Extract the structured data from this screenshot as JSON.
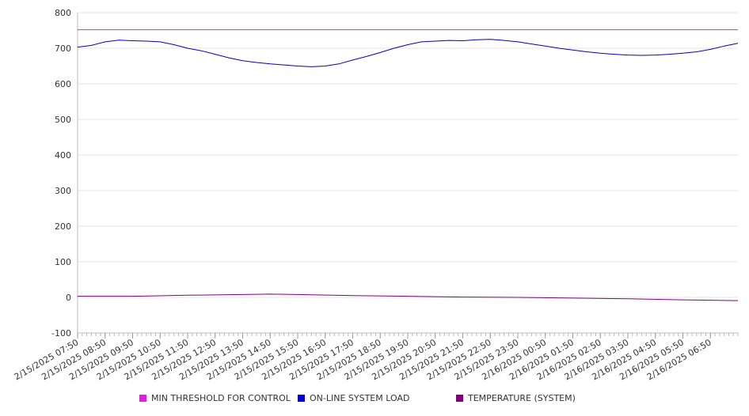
{
  "chart_data": {
    "type": "line",
    "title": "",
    "xlabel": "",
    "ylabel": "",
    "ylim": [
      -100,
      800
    ],
    "y_ticks": [
      -100,
      0,
      100,
      200,
      300,
      400,
      500,
      600,
      700,
      800
    ],
    "y_tick_labels": [
      "-100",
      "0",
      "100",
      "200",
      "300",
      "400",
      "500",
      "600",
      "700",
      "800"
    ],
    "x_range": [
      "2/15/2025 07:50",
      "2/16/2025 07:50"
    ],
    "x_tick_labels": [
      "2/15/2025 07:50",
      "2/15/2025 08:50",
      "2/15/2025 09:50",
      "2/15/2025 10:50",
      "2/15/2025 11:50",
      "2/15/2025 12:50",
      "2/15/2025 13:50",
      "2/15/2025 14:50",
      "2/15/2025 15:50",
      "2/15/2025 16:50",
      "2/15/2025 17:50",
      "2/15/2025 18:50",
      "2/15/2025 19:50",
      "2/15/2025 20:50",
      "2/15/2025 21:50",
      "2/15/2025 22:50",
      "2/15/2025 23:50",
      "2/16/2025 00:50",
      "2/16/2025 01:50",
      "2/16/2025 02:50",
      "2/16/2025 03:50",
      "2/16/2025 04:50",
      "2/16/2025 05:50",
      "2/16/2025 06:50"
    ],
    "grid": "horizontal",
    "legend_position": "bottom",
    "series": [
      {
        "name": "MIN THRESHOLD FOR CONTROL",
        "color": "#e020e0",
        "x": [
          "2/15/2025 07:50",
          "2/16/2025 07:50"
        ],
        "values": [
          752,
          752
        ]
      },
      {
        "name": "ON-LINE SYSTEM LOAD",
        "color": "#0000cc",
        "x": [
          "2/15/2025 07:50",
          "2/15/2025 08:20",
          "2/15/2025 08:50",
          "2/15/2025 09:20",
          "2/15/2025 09:50",
          "2/15/2025 10:20",
          "2/15/2025 10:50",
          "2/15/2025 11:20",
          "2/15/2025 11:50",
          "2/15/2025 12:20",
          "2/15/2025 12:50",
          "2/15/2025 13:20",
          "2/15/2025 13:50",
          "2/15/2025 14:20",
          "2/15/2025 14:50",
          "2/15/2025 15:20",
          "2/15/2025 15:50",
          "2/15/2025 16:20",
          "2/15/2025 16:50",
          "2/15/2025 17:20",
          "2/15/2025 17:50",
          "2/15/2025 18:20",
          "2/15/2025 18:50",
          "2/15/2025 19:20",
          "2/15/2025 19:50",
          "2/15/2025 20:20",
          "2/15/2025 20:50",
          "2/15/2025 21:20",
          "2/15/2025 21:50",
          "2/15/2025 22:20",
          "2/15/2025 22:50",
          "2/15/2025 23:20",
          "2/15/2025 23:50",
          "2/16/2025 00:20",
          "2/16/2025 00:50",
          "2/16/2025 01:20",
          "2/16/2025 01:50",
          "2/16/2025 02:20",
          "2/16/2025 02:50",
          "2/16/2025 03:20",
          "2/16/2025 03:50",
          "2/16/2025 04:20",
          "2/16/2025 04:50",
          "2/16/2025 05:20",
          "2/16/2025 05:50",
          "2/16/2025 06:20",
          "2/16/2025 06:50",
          "2/16/2025 07:20",
          "2/16/2025 07:50"
        ],
        "values": [
          703,
          708,
          718,
          723,
          721,
          720,
          718,
          710,
          700,
          693,
          683,
          673,
          665,
          660,
          656,
          653,
          650,
          648,
          650,
          656,
          667,
          677,
          688,
          700,
          710,
          718,
          720,
          722,
          721,
          724,
          725,
          722,
          718,
          712,
          706,
          700,
          695,
          690,
          686,
          683,
          681,
          680,
          681,
          683,
          686,
          690,
          697,
          706,
          714
        ]
      },
      {
        "name": "TEMPERATURE (SYSTEM)",
        "color": "#800080",
        "x": [
          "2/15/2025 07:50",
          "2/15/2025 09:50",
          "2/15/2025 11:50",
          "2/15/2025 13:50",
          "2/15/2025 14:50",
          "2/15/2025 15:50",
          "2/15/2025 17:50",
          "2/15/2025 19:50",
          "2/15/2025 21:50",
          "2/15/2025 23:50",
          "2/16/2025 01:50",
          "2/16/2025 03:50",
          "2/16/2025 05:50",
          "2/16/2025 07:50"
        ],
        "values": [
          3,
          3,
          6,
          8,
          9,
          8,
          5,
          3,
          1,
          0,
          -2,
          -4,
          -7,
          -9
        ]
      }
    ]
  }
}
